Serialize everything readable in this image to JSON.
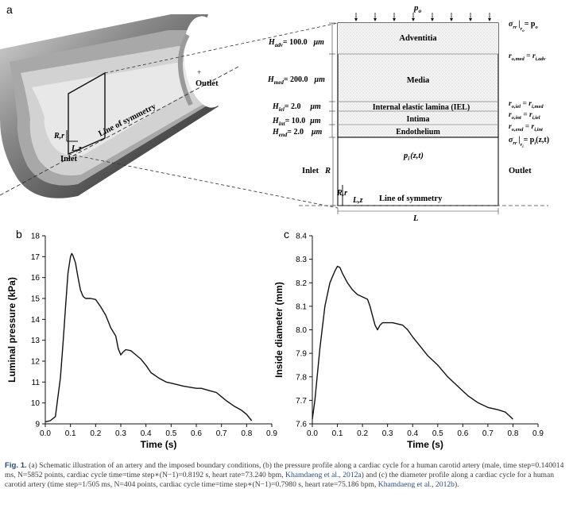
{
  "panel_a": {
    "label": "a",
    "left": {
      "outlet": "Outlet",
      "inlet": "Inlet",
      "symmetry": "Line of symmetry",
      "rr": "R,r",
      "zz": "L,z"
    },
    "schematic": {
      "po": "p",
      "po_sub": "o",
      "layers": [
        "Adventitia",
        "Media",
        "Internal elastic lamina (IEL)",
        "Intima",
        "Endothelium"
      ],
      "thickness": [
        {
          "sym": "H",
          "sub": "adv",
          "val": "= 100.0",
          "unit": "μm"
        },
        {
          "sym": "H",
          "sub": "med",
          "val": "= 200.0",
          "unit": "μm"
        },
        {
          "sym": "H",
          "sub": "iel",
          "val": "= 2.0",
          "unit": "μm"
        },
        {
          "sym": "H",
          "sub": "int",
          "val": "= 10.0",
          "unit": "μm"
        },
        {
          "sym": "H",
          "sub": "end",
          "val": "= 2.0",
          "unit": "μm"
        }
      ],
      "interfaces": [
        {
          "l": "r",
          "ls": "o,med",
          "r": "r",
          "rs": "i,adv"
        },
        {
          "l": "r",
          "ls": "o,iel",
          "r": "r",
          "rs": "i,med"
        },
        {
          "l": "r",
          "ls": "o,int",
          "r": "r",
          "rs": "i,iel"
        },
        {
          "l": "r",
          "ls": "o,end",
          "r": "r",
          "rs": "i,int"
        }
      ],
      "sigma_top": {
        "lhs": "σ",
        "sub": "rr",
        "eval": "r",
        "eval_sub": "o",
        "rhs": "= p",
        "rhs_sub": "o"
      },
      "sigma_bottom": {
        "lhs": "σ",
        "sub": "rr",
        "eval": "r",
        "eval_sub": "i",
        "rhs": "= p",
        "rhs_sub": "i",
        "rhs_tail": "(z,t)"
      },
      "pi": "p",
      "pi_sub": "i",
      "pi_tail": "(z,t)",
      "inlet": "Inlet",
      "outlet": "Outlet",
      "R": "R",
      "Rr": "R,r",
      "Lz": "L,z",
      "symmetry": "Line of symmetry",
      "L": "L"
    }
  },
  "chart_data": [
    {
      "panel": "b",
      "type": "line",
      "xlabel": "Time (s)",
      "ylabel": "Luminal pressure (kPa)",
      "xlim": [
        0.0,
        0.9
      ],
      "ylim": [
        9,
        18
      ],
      "xticks": [
        "0.0",
        "0.1",
        "0.2",
        "0.3",
        "0.4",
        "0.5",
        "0.6",
        "0.7",
        "0.8",
        "0.9"
      ],
      "yticks": [
        "9",
        "10",
        "11",
        "12",
        "13",
        "14",
        "15",
        "16",
        "17",
        "18"
      ],
      "x": [
        0.0,
        0.02,
        0.04,
        0.06,
        0.07,
        0.08,
        0.09,
        0.1,
        0.105,
        0.11,
        0.12,
        0.13,
        0.14,
        0.15,
        0.16,
        0.17,
        0.18,
        0.2,
        0.22,
        0.24,
        0.25,
        0.26,
        0.28,
        0.29,
        0.3,
        0.31,
        0.32,
        0.34,
        0.36,
        0.38,
        0.4,
        0.42,
        0.45,
        0.48,
        0.5,
        0.55,
        0.6,
        0.62,
        0.65,
        0.68,
        0.7,
        0.72,
        0.75,
        0.78,
        0.8,
        0.82
      ],
      "y": [
        9.1,
        9.15,
        9.35,
        11.2,
        12.8,
        14.5,
        16.2,
        17.0,
        17.15,
        17.05,
        16.7,
        16.0,
        15.4,
        15.1,
        15.0,
        15.0,
        15.0,
        14.95,
        14.6,
        14.2,
        13.9,
        13.6,
        13.2,
        12.6,
        12.3,
        12.45,
        12.55,
        12.5,
        12.3,
        12.1,
        11.8,
        11.45,
        11.2,
        11.0,
        10.95,
        10.8,
        10.7,
        10.7,
        10.6,
        10.5,
        10.3,
        10.1,
        9.85,
        9.65,
        9.45,
        9.15
      ]
    },
    {
      "panel": "c",
      "type": "line",
      "xlabel": "Time (s)",
      "ylabel": "Inside diameter (mm)",
      "xlim": [
        0.0,
        0.9
      ],
      "ylim": [
        7.6,
        8.4
      ],
      "xticks": [
        "0.0",
        "0.1",
        "0.2",
        "0.3",
        "0.4",
        "0.5",
        "0.6",
        "0.7",
        "0.8",
        "0.9"
      ],
      "yticks": [
        "7.6",
        "7.7",
        "7.8",
        "7.9",
        "8.0",
        "8.1",
        "8.2",
        "8.3",
        "8.4"
      ],
      "x": [
        0.0,
        0.01,
        0.03,
        0.05,
        0.07,
        0.09,
        0.1,
        0.11,
        0.12,
        0.14,
        0.16,
        0.18,
        0.2,
        0.22,
        0.23,
        0.24,
        0.25,
        0.26,
        0.27,
        0.28,
        0.3,
        0.32,
        0.34,
        0.36,
        0.38,
        0.4,
        0.43,
        0.46,
        0.5,
        0.54,
        0.58,
        0.62,
        0.66,
        0.7,
        0.74,
        0.77,
        0.79,
        0.8
      ],
      "y": [
        7.62,
        7.7,
        7.92,
        8.1,
        8.2,
        8.25,
        8.27,
        8.265,
        8.24,
        8.2,
        8.17,
        8.15,
        8.14,
        8.13,
        8.1,
        8.06,
        8.02,
        8.0,
        8.02,
        8.03,
        8.03,
        8.03,
        8.025,
        8.02,
        8.0,
        7.97,
        7.93,
        7.89,
        7.85,
        7.8,
        7.76,
        7.72,
        7.69,
        7.67,
        7.66,
        7.65,
        7.63,
        7.62
      ]
    }
  ],
  "caption": {
    "label": "Fig. 1.",
    "text": "(a) Schematic illustration of an artery and the imposed boundary conditions, (b) the pressure profile along a cardiac cycle for a human carotid artery (male, time step=0.140014 ms, N=5852 points, cardiac cycle time=time step∗(N−1)=0.8192 s, heart rate=73.240 bpm,",
    "cite1": "Khamdaeng et al., 2012a",
    "text2": ") and (c) the diameter profile along a cardiac cycle for a human carotid artery (time step=1/505 ms, N=404 points, cardiac cycle time=time step∗(N−1)=0.7980 s, heart rate=75.186 bpm,",
    "cite2": "Khamdaeng et al., 2012b",
    "text3": ")."
  },
  "panel_labels": {
    "b": "b",
    "c": "c"
  },
  "colors": {
    "curve": "#111111",
    "caption_label": "#2a4a7a",
    "citation": "#2a4a8a"
  }
}
